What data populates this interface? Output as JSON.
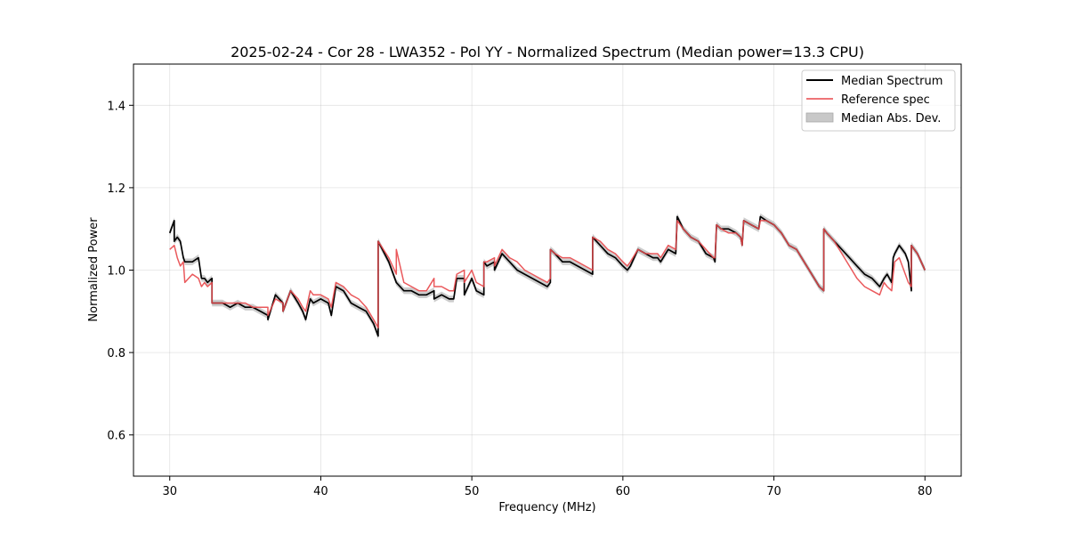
{
  "chart_data": {
    "type": "line",
    "title": "2025-02-24 - Cor 28 - LWA352 - Pol YY - Normalized Spectrum (Median power=13.3 CPU)",
    "xlabel": "Frequency (MHz)",
    "ylabel": "Normalized Power",
    "xlim": [
      27.6,
      82.4
    ],
    "ylim": [
      0.5,
      1.5
    ],
    "x_ticks": [
      30,
      40,
      50,
      60,
      70,
      80
    ],
    "y_ticks": [
      0.6,
      0.8,
      1.0,
      1.2,
      1.4
    ],
    "grid": true,
    "legend_position": "top-right",
    "legend": [
      "Median Spectrum",
      "Reference spec",
      "Median Abs. Dev."
    ],
    "series": [
      {
        "name": "Median Spectrum",
        "color": "#000000",
        "x": [
          30.0,
          30.3,
          30.3,
          30.5,
          30.7,
          30.9,
          31.0,
          31.5,
          31.9,
          32.1,
          32.3,
          32.5,
          32.8,
          32.8,
          33.5,
          34.0,
          34.5,
          35.0,
          35.5,
          36.0,
          36.5,
          36.5,
          37.0,
          37.5,
          37.5,
          38.0,
          38.5,
          38.8,
          39.0,
          39.3,
          39.5,
          40.0,
          40.5,
          40.7,
          41.0,
          41.5,
          42.0,
          42.5,
          43.0,
          43.5,
          43.8,
          43.8,
          44.5,
          45.0,
          45.5,
          46.0,
          46.5,
          47.0,
          47.5,
          47.5,
          48.0,
          48.5,
          48.8,
          49.0,
          49.5,
          49.5,
          50.0,
          50.3,
          50.8,
          50.8,
          51.0,
          51.5,
          51.5,
          52.0,
          52.5,
          53.0,
          53.5,
          54.0,
          54.5,
          55.0,
          55.2,
          55.2,
          55.5,
          56.0,
          56.5,
          57.0,
          57.5,
          58.0,
          58.0,
          58.5,
          59.0,
          59.5,
          60.0,
          60.3,
          60.5,
          61.0,
          61.5,
          62.0,
          62.3,
          62.5,
          63.0,
          63.5,
          63.6,
          64.0,
          64.5,
          65.0,
          65.5,
          66.0,
          66.1,
          66.2,
          66.5,
          67.0,
          67.5,
          67.8,
          67.9,
          68.0,
          68.5,
          69.0,
          69.1,
          69.5,
          70.0,
          70.5,
          71.0,
          71.5,
          72.0,
          72.5,
          73.0,
          73.3,
          73.3,
          73.5,
          74.0,
          74.5,
          75.0,
          75.5,
          76.0,
          76.5,
          77.0,
          77.3,
          77.5,
          77.8,
          77.9,
          78.0,
          78.3,
          78.5,
          78.7,
          78.9,
          79.1,
          79.1,
          79.5,
          80.0
        ],
        "values": [
          1.09,
          1.12,
          1.07,
          1.08,
          1.07,
          1.03,
          1.02,
          1.02,
          1.03,
          0.98,
          0.98,
          0.97,
          0.98,
          0.92,
          0.92,
          0.91,
          0.92,
          0.91,
          0.91,
          0.9,
          0.89,
          0.88,
          0.94,
          0.92,
          0.9,
          0.95,
          0.92,
          0.9,
          0.88,
          0.93,
          0.92,
          0.93,
          0.92,
          0.89,
          0.96,
          0.95,
          0.92,
          0.91,
          0.9,
          0.87,
          0.84,
          1.07,
          1.02,
          0.97,
          0.95,
          0.95,
          0.94,
          0.94,
          0.95,
          0.93,
          0.94,
          0.93,
          0.93,
          0.98,
          0.98,
          0.94,
          0.98,
          0.95,
          0.94,
          1.02,
          1.01,
          1.02,
          1.0,
          1.04,
          1.02,
          1.0,
          0.99,
          0.98,
          0.97,
          0.96,
          0.97,
          1.05,
          1.04,
          1.02,
          1.02,
          1.01,
          1.0,
          0.99,
          1.08,
          1.06,
          1.04,
          1.03,
          1.01,
          1.0,
          1.01,
          1.05,
          1.04,
          1.03,
          1.03,
          1.02,
          1.05,
          1.04,
          1.13,
          1.1,
          1.08,
          1.07,
          1.04,
          1.03,
          1.02,
          1.11,
          1.1,
          1.1,
          1.09,
          1.08,
          1.06,
          1.12,
          1.11,
          1.1,
          1.13,
          1.12,
          1.11,
          1.09,
          1.06,
          1.05,
          1.02,
          0.99,
          0.96,
          0.95,
          1.1,
          1.09,
          1.07,
          1.05,
          1.03,
          1.01,
          0.99,
          0.98,
          0.96,
          0.98,
          0.99,
          0.97,
          1.03,
          1.04,
          1.06,
          1.05,
          1.04,
          1.02,
          0.95,
          1.06,
          1.04,
          1.0
        ],
        "mad_band": 0.008
      },
      {
        "name": "Reference spec",
        "color": "#e8474a",
        "x": [
          30.0,
          30.3,
          30.5,
          30.7,
          30.9,
          31.0,
          31.5,
          31.9,
          32.1,
          32.3,
          32.5,
          32.8,
          32.8,
          33.5,
          34.0,
          34.5,
          35.0,
          35.5,
          36.0,
          36.5,
          36.5,
          37.0,
          37.5,
          37.5,
          38.0,
          38.5,
          38.8,
          39.0,
          39.3,
          39.5,
          40.0,
          40.5,
          40.7,
          41.0,
          41.5,
          42.0,
          42.5,
          43.0,
          43.5,
          43.8,
          43.8,
          44.5,
          45.0,
          45.0,
          45.5,
          46.0,
          46.5,
          47.0,
          47.5,
          47.5,
          48.0,
          48.5,
          48.8,
          49.0,
          49.5,
          49.5,
          50.0,
          50.3,
          50.8,
          50.8,
          51.0,
          51.5,
          51.5,
          52.0,
          52.5,
          53.0,
          53.5,
          54.0,
          54.5,
          55.0,
          55.2,
          55.2,
          55.5,
          56.0,
          56.5,
          57.0,
          57.5,
          58.0,
          58.0,
          58.5,
          59.0,
          59.5,
          60.0,
          60.3,
          60.5,
          61.0,
          61.5,
          62.0,
          62.3,
          62.5,
          63.0,
          63.5,
          63.6,
          64.0,
          64.5,
          65.0,
          65.5,
          66.0,
          66.1,
          66.2,
          66.5,
          67.0,
          67.5,
          67.8,
          67.9,
          68.0,
          68.5,
          69.0,
          69.1,
          69.5,
          70.0,
          70.5,
          71.0,
          71.5,
          72.0,
          72.5,
          73.0,
          73.3,
          73.3,
          73.5,
          74.0,
          74.5,
          75.0,
          75.5,
          76.0,
          76.5,
          77.0,
          77.3,
          77.5,
          77.8,
          77.9,
          78.0,
          78.3,
          78.5,
          78.7,
          78.9,
          79.1,
          79.1,
          79.5,
          80.0
        ],
        "values": [
          1.05,
          1.06,
          1.03,
          1.01,
          1.02,
          0.97,
          0.99,
          0.98,
          0.96,
          0.97,
          0.96,
          0.97,
          0.92,
          0.92,
          0.92,
          0.92,
          0.92,
          0.91,
          0.91,
          0.91,
          0.89,
          0.93,
          0.92,
          0.9,
          0.95,
          0.93,
          0.91,
          0.9,
          0.95,
          0.94,
          0.94,
          0.93,
          0.91,
          0.97,
          0.96,
          0.94,
          0.93,
          0.91,
          0.88,
          0.86,
          1.07,
          1.03,
          0.99,
          1.05,
          0.97,
          0.96,
          0.95,
          0.95,
          0.98,
          0.96,
          0.96,
          0.95,
          0.95,
          0.99,
          1.0,
          0.97,
          1.0,
          0.97,
          0.96,
          1.02,
          1.02,
          1.03,
          1.01,
          1.05,
          1.03,
          1.02,
          1.0,
          0.99,
          0.98,
          0.97,
          0.98,
          1.05,
          1.04,
          1.03,
          1.03,
          1.02,
          1.01,
          1.0,
          1.08,
          1.07,
          1.05,
          1.04,
          1.02,
          1.01,
          1.02,
          1.05,
          1.04,
          1.04,
          1.04,
          1.03,
          1.06,
          1.05,
          1.12,
          1.1,
          1.08,
          1.07,
          1.05,
          1.03,
          1.03,
          1.11,
          1.1,
          1.09,
          1.09,
          1.08,
          1.06,
          1.12,
          1.11,
          1.1,
          1.12,
          1.12,
          1.11,
          1.09,
          1.06,
          1.05,
          1.02,
          0.99,
          0.96,
          0.95,
          1.1,
          1.09,
          1.07,
          1.04,
          1.01,
          0.98,
          0.96,
          0.95,
          0.94,
          0.97,
          0.96,
          0.95,
          0.99,
          1.02,
          1.03,
          1.01,
          0.99,
          0.97,
          0.96,
          1.06,
          1.04,
          1.0
        ]
      }
    ],
    "mad_color": "#c8c8c8"
  }
}
